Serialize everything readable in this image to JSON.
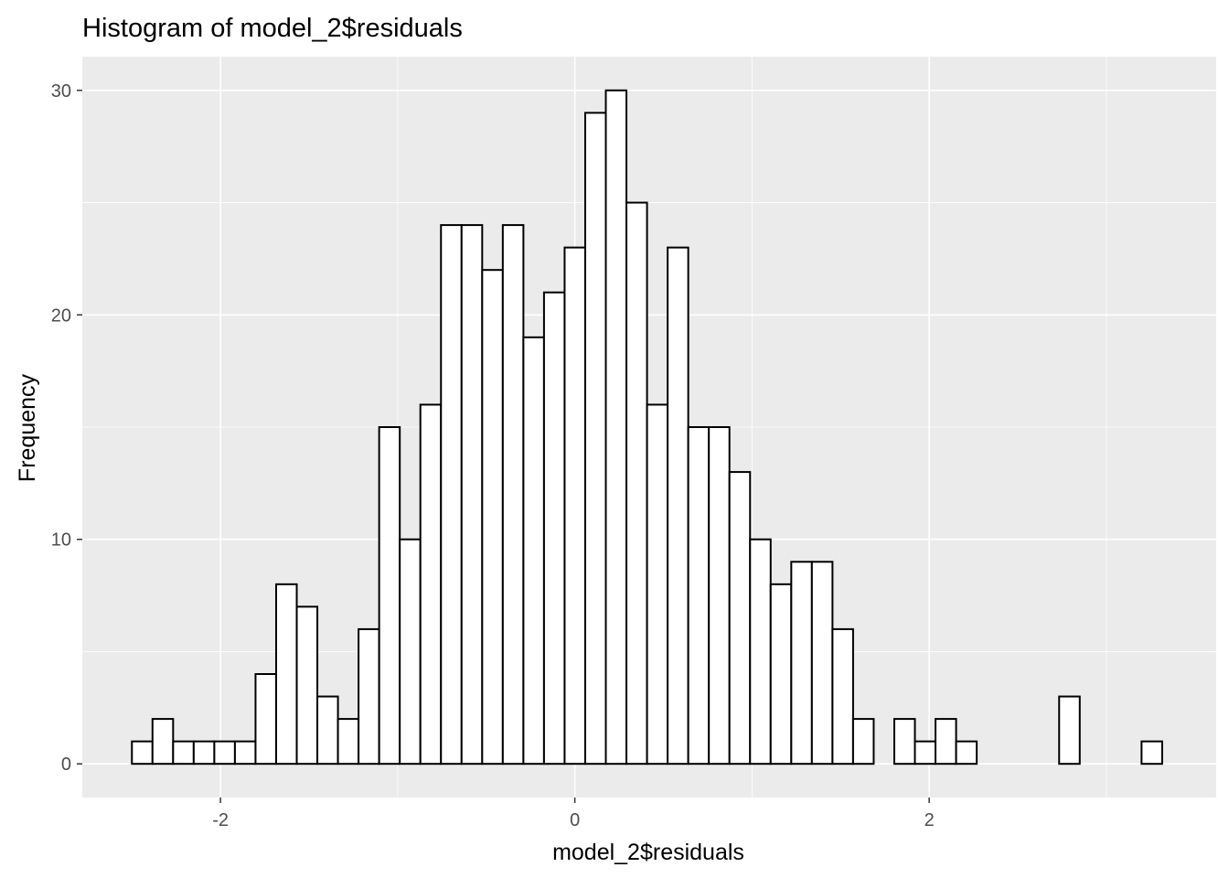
{
  "chart_data": {
    "type": "histogram",
    "title": "Histogram of model_2$residuals",
    "xlabel": "model_2$residuals",
    "ylabel": "Frequency",
    "xlim": [
      -2.78,
      3.62
    ],
    "ylim": [
      -1.5,
      31.5
    ],
    "x_ticks": [
      -2,
      0,
      2
    ],
    "x_tick_labels": [
      "-2",
      "0",
      "2"
    ],
    "y_ticks": [
      0,
      10,
      20,
      30
    ],
    "y_tick_labels": [
      "0",
      "10",
      "20",
      "30"
    ],
    "grid": true,
    "bin_width": 0.1163,
    "bin_start": -2.5,
    "values": [
      1,
      2,
      1,
      1,
      1,
      1,
      4,
      8,
      7,
      3,
      2,
      6,
      15,
      10,
      16,
      24,
      24,
      22,
      24,
      19,
      21,
      23,
      29,
      30,
      25,
      16,
      23,
      15,
      15,
      13,
      10,
      8,
      9,
      9,
      6,
      2,
      0,
      2,
      1,
      2,
      1,
      0,
      0,
      0,
      0,
      3,
      0,
      0,
      0,
      1
    ],
    "colors": {
      "panel_background": "#ebebeb",
      "grid_major": "#ffffff",
      "bar_fill": "#ffffff",
      "bar_stroke": "#000000",
      "tick_label": "#4d4d4d"
    }
  }
}
